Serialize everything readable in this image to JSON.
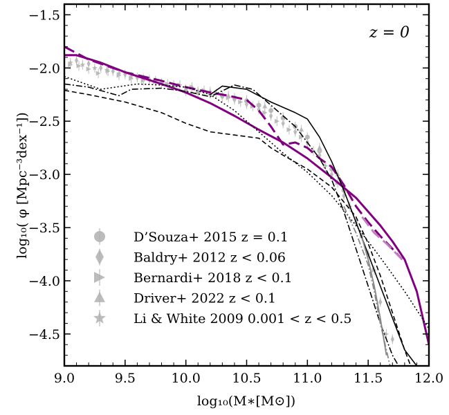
{
  "chart_data": {
    "type": "line",
    "xlim": [
      9.0,
      12.0
    ],
    "ylim": [
      -4.8,
      -1.4
    ],
    "xticks": [
      9.0,
      9.5,
      10.0,
      10.5,
      11.0,
      11.5,
      12.0
    ],
    "yticks": [
      -1.5,
      -2.0,
      -2.5,
      -3.0,
      -3.5,
      -4.0,
      -4.5
    ],
    "xtick_labels": [
      "9.0",
      "9.5",
      "10.0",
      "10.5",
      "11.0",
      "11.5",
      "12.0"
    ],
    "ytick_labels": [
      "−1.5",
      "−2.0",
      "−2.5",
      "−3.0",
      "−3.5",
      "−4.0",
      "−4.5"
    ],
    "xlabel": "log₁₀(M∗[M⊙])",
    "ylabel": "log₁₀( φ [Mpc⁻³dex⁻¹])",
    "annotation": "z = 0",
    "colors": {
      "purple": "#800080",
      "purple_light": "#c080c0",
      "black": "#000000",
      "gray": "#888888",
      "obs": "#b0b0b0"
    },
    "series": [
      {
        "name": "purple-solid",
        "color": "#800080",
        "dash": "solid",
        "width": 3,
        "x": [
          9.0,
          9.1,
          9.3,
          9.5,
          9.8,
          10.0,
          10.2,
          10.4,
          10.6,
          10.8,
          11.0,
          11.2,
          11.4,
          11.5,
          11.6,
          11.7,
          11.8,
          11.9,
          12.0
        ],
        "y": [
          -1.88,
          -1.88,
          -1.95,
          -2.04,
          -2.15,
          -2.23,
          -2.33,
          -2.45,
          -2.58,
          -2.7,
          -2.85,
          -3.03,
          -3.22,
          -3.35,
          -3.48,
          -3.63,
          -3.8,
          -4.1,
          -4.6
        ]
      },
      {
        "name": "purple-dashed",
        "color": "#800080",
        "dash": "16,7",
        "width": 3,
        "x": [
          9.0,
          9.2,
          9.5,
          9.8,
          10.0,
          10.2,
          10.35,
          10.5,
          10.6,
          10.7,
          10.8,
          10.9,
          11.0,
          11.1,
          11.2,
          11.3,
          11.4,
          11.5,
          11.6,
          11.7,
          11.78
        ],
        "y": [
          -1.8,
          -1.92,
          -2.04,
          -2.12,
          -2.18,
          -2.23,
          -2.26,
          -2.3,
          -2.4,
          -2.55,
          -2.72,
          -2.7,
          -2.75,
          -2.85,
          -2.93,
          -3.1,
          -3.3,
          -3.45,
          -3.58,
          -3.7,
          -3.8
        ]
      },
      {
        "name": "purple-light-dashed",
        "color": "#c080c0",
        "dash": "16,7",
        "width": 3,
        "x": [
          11.45,
          11.55,
          11.65,
          11.78
        ],
        "y": [
          -3.4,
          -3.55,
          -3.65,
          -3.8
        ]
      },
      {
        "name": "black-solid",
        "color": "#000000",
        "dash": "solid",
        "width": 1.6,
        "x": [
          10.2,
          10.3,
          10.5,
          10.7,
          10.9,
          11.0,
          11.1,
          11.2,
          11.3,
          11.4,
          11.5,
          11.6,
          11.7,
          11.8,
          11.9
        ],
        "y": [
          -2.25,
          -2.17,
          -2.2,
          -2.32,
          -2.42,
          -2.48,
          -2.65,
          -2.88,
          -3.15,
          -3.45,
          -3.75,
          -4.05,
          -4.35,
          -4.65,
          -4.8
        ]
      },
      {
        "name": "black-dashed",
        "color": "#000000",
        "dash": "7,4",
        "width": 1.6,
        "x": [
          9.0,
          9.2,
          9.5,
          9.8,
          10.0,
          10.2,
          10.4,
          10.6,
          10.7,
          10.8,
          11.0,
          11.2,
          11.4,
          11.5,
          11.6,
          11.7,
          11.8,
          11.85
        ],
        "y": [
          -2.21,
          -2.25,
          -2.32,
          -2.42,
          -2.52,
          -2.6,
          -2.63,
          -2.66,
          -2.75,
          -2.82,
          -2.95,
          -3.12,
          -3.4,
          -3.65,
          -3.95,
          -4.3,
          -4.65,
          -4.8
        ]
      },
      {
        "name": "black-dotted",
        "color": "#000000",
        "dash": "2,3",
        "width": 1.6,
        "x": [
          9.0,
          9.3,
          9.6,
          9.8,
          10.0,
          10.2,
          10.4,
          10.6,
          10.8,
          11.0,
          11.2,
          11.4,
          11.6,
          11.8,
          12.0
        ],
        "y": [
          -2.08,
          -2.2,
          -2.15,
          -2.16,
          -2.18,
          -2.25,
          -2.4,
          -2.6,
          -2.8,
          -2.98,
          -3.2,
          -3.48,
          -3.78,
          -4.1,
          -4.45
        ]
      },
      {
        "name": "black-dashdot",
        "color": "#000000",
        "dash": "9,3,2,3",
        "width": 1.6,
        "x": [
          9.0,
          9.2,
          9.45,
          9.55,
          9.8,
          10.0,
          10.2,
          10.4,
          10.55,
          10.7,
          10.9,
          11.0,
          11.1,
          11.2,
          11.3,
          11.4,
          11.5,
          11.6,
          11.7,
          11.75
        ],
        "y": [
          -2.15,
          -2.18,
          -2.26,
          -2.2,
          -2.19,
          -2.22,
          -2.27,
          -2.16,
          -2.2,
          -2.35,
          -2.55,
          -2.7,
          -2.85,
          -3.05,
          -3.35,
          -3.7,
          -4.05,
          -4.4,
          -4.7,
          -4.8
        ]
      },
      {
        "name": "gray-dashdot",
        "color": "#888888",
        "dash": "9,3,2,3",
        "width": 1.8,
        "x": [
          11.3,
          11.4,
          11.5,
          11.55,
          11.6,
          11.68
        ],
        "y": [
          -3.3,
          -3.55,
          -3.85,
          -4.1,
          -4.4,
          -4.8
        ]
      },
      {
        "name": "gray-solid",
        "color": "#888888",
        "dash": "solid",
        "width": 1.8,
        "x": [
          11.45,
          11.5,
          11.55,
          11.6,
          11.65
        ],
        "y": [
          -3.6,
          -3.8,
          -4.05,
          -4.35,
          -4.7
        ]
      }
    ],
    "observations": [
      {
        "marker": "triangle-right",
        "x": [
          9.05,
          9.12,
          9.2,
          9.28,
          9.36,
          9.45,
          9.55,
          9.65,
          9.75,
          9.85,
          9.95,
          10.05,
          10.15,
          10.25,
          10.35,
          10.45,
          10.55,
          10.65,
          10.75,
          10.85,
          10.95,
          11.05,
          11.15,
          11.25,
          11.35,
          11.45,
          11.55,
          11.65
        ],
        "y": [
          -1.97,
          -1.98,
          -2.01,
          -2.05,
          -2.03,
          -2.07,
          -2.1,
          -2.12,
          -2.13,
          -2.15,
          -2.16,
          -2.18,
          -2.21,
          -2.24,
          -2.28,
          -2.32,
          -2.36,
          -2.42,
          -2.5,
          -2.58,
          -2.65,
          -2.78,
          -2.92,
          -3.08,
          -3.3,
          -3.58,
          -3.9,
          -4.5
        ]
      },
      {
        "marker": "diamond",
        "x": [
          9.1,
          9.2,
          9.3,
          9.4,
          9.5,
          9.6,
          9.7,
          9.8,
          9.9,
          10.0,
          10.1,
          10.2,
          10.3,
          10.4,
          10.5,
          10.6,
          10.7,
          10.8,
          10.9,
          11.0,
          11.1,
          11.2,
          11.3,
          11.4,
          11.5,
          11.6,
          11.7
        ],
        "y": [
          -1.93,
          -1.96,
          -2.0,
          -2.03,
          -2.06,
          -2.09,
          -2.11,
          -2.14,
          -2.17,
          -2.2,
          -2.22,
          -2.24,
          -2.27,
          -2.3,
          -2.34,
          -2.39,
          -2.45,
          -2.52,
          -2.6,
          -2.7,
          -2.82,
          -3.0,
          -3.2,
          -3.45,
          -3.75,
          -4.2,
          -4.55
        ]
      },
      {
        "marker": "circle",
        "x": [
          10.0,
          10.1,
          10.2,
          10.3,
          10.4,
          10.5,
          10.6,
          10.7,
          10.8,
          10.9,
          11.0,
          11.1,
          11.2,
          11.3
        ],
        "y": [
          -2.22,
          -2.23,
          -2.24,
          -2.26,
          -2.28,
          -2.31,
          -2.35,
          -2.4,
          -2.47,
          -2.55,
          -2.65,
          -2.78,
          -2.95,
          -3.15
        ]
      },
      {
        "marker": "triangle-up",
        "x": [
          9.9,
          10.05,
          10.2,
          10.35,
          10.5,
          10.65,
          10.8,
          10.95,
          11.1,
          11.25
        ],
        "y": [
          -2.16,
          -2.18,
          -2.22,
          -2.26,
          -2.3,
          -2.36,
          -2.46,
          -2.58,
          -2.75,
          -3.0
        ]
      },
      {
        "marker": "star",
        "x": [
          9.05,
          9.15,
          9.25,
          9.35,
          9.45,
          9.55,
          9.65,
          9.75
        ],
        "y": [
          -1.95,
          -1.97,
          -2.0,
          -2.02,
          -2.05,
          -2.08,
          -2.1,
          -2.12
        ]
      }
    ],
    "legend": {
      "placement": "bottom-left",
      "entries": [
        {
          "marker": "circle",
          "label": "D’Souza+ 2015 z = 0.1"
        },
        {
          "marker": "diamond",
          "label": "Baldry+ 2012 z < 0.06"
        },
        {
          "marker": "triangle-right",
          "label": "Bernardi+ 2018 z < 0.1"
        },
        {
          "marker": "triangle-up",
          "label": "Driver+ 2022 z < 0.1"
        },
        {
          "marker": "star",
          "label": "Li & White 2009 0.001 < z < 0.5"
        }
      ]
    }
  }
}
